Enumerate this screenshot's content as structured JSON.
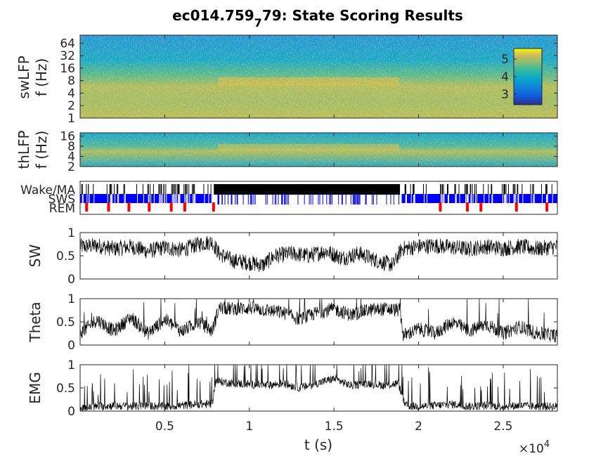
{
  "title": {
    "prefix": "ec014.759",
    "subscript": "7",
    "suffix": "79: State Scoring Results"
  },
  "colors": {
    "text": "#262626",
    "signal": "#000000",
    "wake": "#000000",
    "sws": "#0000FF",
    "rem": "#FF0000",
    "parula_low": "#352A87",
    "parula_mid": "#1AB2C4",
    "parula_high": "#F9FB0E"
  },
  "x_axis": {
    "label": "t (s)",
    "exponent_base": "×10",
    "exponent_power": "4",
    "ticks": [
      {
        "value": 5000,
        "label": "0.5"
      },
      {
        "value": 10000,
        "label": "1"
      },
      {
        "value": 15000,
        "label": "1.5"
      },
      {
        "value": 20000,
        "label": "2"
      },
      {
        "value": 25000,
        "label": "2.5"
      }
    ]
  },
  "chart_data": [
    {
      "type": "heatmap",
      "panel": "swLFP",
      "ylabel_line1": "swLFP",
      "ylabel_line2": "f (Hz)",
      "yscale": "log",
      "ylim": [
        1,
        100
      ],
      "yticks": [
        {
          "value": 1,
          "label": "1"
        },
        {
          "value": 2,
          "label": "2"
        },
        {
          "value": 4,
          "label": "4"
        },
        {
          "value": 8,
          "label": "8"
        },
        {
          "value": 16,
          "label": "16"
        },
        {
          "value": 32,
          "label": "32"
        },
        {
          "value": 64,
          "label": "64"
        }
      ],
      "colorbar": {
        "ticks": [
          {
            "value": 3,
            "label": "3"
          },
          {
            "value": 4,
            "label": "4"
          },
          {
            "value": 5,
            "label": "5"
          }
        ],
        "range": [
          2.4,
          5.6
        ],
        "location": "top-right"
      },
      "xlim": [
        0,
        28200
      ]
    },
    {
      "type": "heatmap",
      "panel": "thLFP",
      "ylabel_line1": "thLFP",
      "ylabel_line2": "f (Hz)",
      "yscale": "log",
      "ylim": [
        2,
        20
      ],
      "yticks": [
        {
          "value": 2,
          "label": "2"
        },
        {
          "value": 4,
          "label": "4"
        },
        {
          "value": 8,
          "label": "8"
        },
        {
          "value": 16,
          "label": "16"
        }
      ],
      "xlim": [
        0,
        28200
      ]
    },
    {
      "type": "raster",
      "panel": "states",
      "state_labels": [
        "Wake/MA",
        "SWS",
        "REM"
      ],
      "xlim": [
        0,
        28200
      ],
      "wake_blocks": [
        [
          7900,
          18900
        ]
      ],
      "sws_blocks": [
        [
          0,
          7800
        ],
        [
          19000,
          28200
        ]
      ],
      "rem_events": [
        300,
        1600,
        2800,
        4000,
        5300,
        6100,
        7800,
        21200,
        22800,
        23600,
        25700,
        27500
      ]
    },
    {
      "type": "line",
      "panel": "SW",
      "ylabel": "SW",
      "ylim": [
        0,
        1
      ],
      "yticks": [
        {
          "value": 0,
          "label": "0"
        },
        {
          "value": 0.5,
          "label": "0.5"
        },
        {
          "value": 1,
          "label": "1"
        }
      ],
      "x": [
        0,
        1000,
        2000,
        3000,
        4000,
        5000,
        6000,
        7000,
        7800,
        8200,
        9000,
        10000,
        10800,
        11500,
        12500,
        13500,
        14500,
        15500,
        16500,
        17500,
        18500,
        19000,
        20000,
        21000,
        22000,
        23000,
        24000,
        25000,
        26000,
        27000,
        28200
      ],
      "y": [
        0.7,
        0.72,
        0.65,
        0.7,
        0.6,
        0.68,
        0.62,
        0.75,
        0.8,
        0.55,
        0.4,
        0.35,
        0.3,
        0.5,
        0.55,
        0.5,
        0.6,
        0.45,
        0.55,
        0.4,
        0.3,
        0.65,
        0.7,
        0.72,
        0.68,
        0.65,
        0.7,
        0.66,
        0.7,
        0.65,
        0.7
      ]
    },
    {
      "type": "line",
      "panel": "Theta",
      "ylabel": "Theta",
      "ylim": [
        0,
        1
      ],
      "yticks": [
        {
          "value": 0,
          "label": "0"
        },
        {
          "value": 0.5,
          "label": "0.5"
        },
        {
          "value": 1,
          "label": "1"
        }
      ],
      "x": [
        0,
        1000,
        2000,
        3000,
        4000,
        5000,
        6000,
        7000,
        7800,
        8200,
        9000,
        10000,
        11000,
        12000,
        13000,
        14000,
        15000,
        16000,
        17000,
        18000,
        18900,
        19100,
        20000,
        21000,
        22000,
        23000,
        24000,
        25000,
        26000,
        27000,
        28200
      ],
      "y": [
        0.25,
        0.55,
        0.3,
        0.6,
        0.25,
        0.55,
        0.3,
        0.5,
        0.3,
        0.8,
        0.78,
        0.8,
        0.75,
        0.7,
        0.55,
        0.7,
        0.78,
        0.65,
        0.75,
        0.78,
        0.75,
        0.2,
        0.35,
        0.25,
        0.5,
        0.3,
        0.45,
        0.25,
        0.4,
        0.25,
        0.2
      ]
    },
    {
      "type": "line",
      "panel": "EMG",
      "ylabel": "EMG",
      "ylim": [
        0,
        1
      ],
      "yticks": [
        {
          "value": 0,
          "label": "0"
        },
        {
          "value": 0.5,
          "label": "0.5"
        },
        {
          "value": 1,
          "label": "1"
        }
      ],
      "x": [
        0,
        1000,
        2000,
        3000,
        4000,
        5000,
        6000,
        7000,
        7800,
        8000,
        9000,
        10000,
        11000,
        12000,
        13000,
        14000,
        15000,
        16000,
        17000,
        18000,
        18800,
        19200,
        20000,
        21000,
        22000,
        23000,
        24000,
        25000,
        26000,
        27000,
        28200
      ],
      "y": [
        0.05,
        0.1,
        0.12,
        0.1,
        0.12,
        0.1,
        0.12,
        0.15,
        0.15,
        0.65,
        0.6,
        0.58,
        0.55,
        0.6,
        0.5,
        0.6,
        0.7,
        0.55,
        0.6,
        0.55,
        0.6,
        0.12,
        0.1,
        0.12,
        0.15,
        0.1,
        0.12,
        0.1,
        0.12,
        0.1,
        0.1
      ]
    }
  ]
}
